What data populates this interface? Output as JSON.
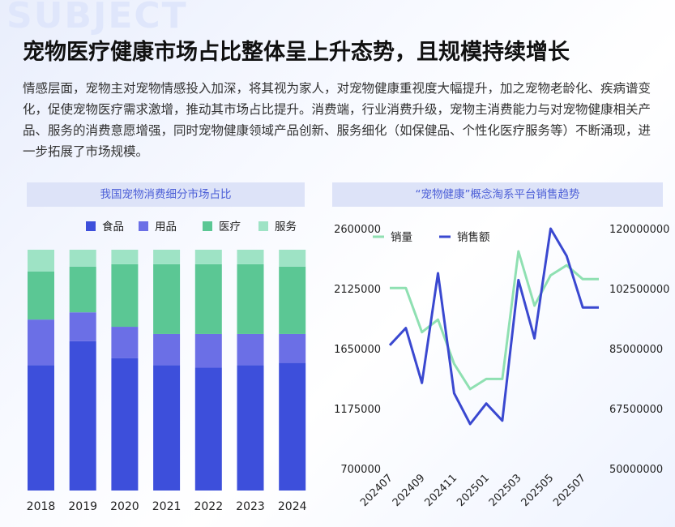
{
  "title": "宠物医疗健康市场占比整体呈上升态势，且规模持续增长",
  "paragraph": "情感层面，宠物主对宠物情感投入加深，将其视为家人，对宠物健康重视度大幅提升，加之宠物老龄化、疾病谱变化，促使宠物医疗需求激增，推动其市场占比提升。消费端，行业消费升级，宠物主消费能力与对宠物健康相关产品、服务的消费意愿增强，同时宠物健康领域产品创新、服务细化（如保健品、个性化医疗服务等）不断涌现，进一步拓展了市场规模。",
  "chart_data": [
    {
      "type": "bar",
      "stacked": true,
      "normalized": true,
      "title": "我国宠物消费细分市场占比",
      "categories": [
        "2018",
        "2019",
        "2020",
        "2021",
        "2022",
        "2023",
        "2024"
      ],
      "series": [
        {
          "name": "食品",
          "color": "#3d4fdb",
          "values": [
            0.52,
            0.62,
            0.55,
            0.52,
            0.51,
            0.52,
            0.53
          ]
        },
        {
          "name": "用品",
          "color": "#6b6fe6",
          "values": [
            0.19,
            0.12,
            0.13,
            0.13,
            0.14,
            0.13,
            0.12
          ]
        },
        {
          "name": "医疗",
          "color": "#5bc794",
          "values": [
            0.2,
            0.19,
            0.26,
            0.29,
            0.29,
            0.29,
            0.28
          ]
        },
        {
          "name": "服务",
          "color": "#9ee3c5",
          "values": [
            0.09,
            0.07,
            0.06,
            0.06,
            0.06,
            0.06,
            0.07
          ]
        }
      ],
      "legend": "top"
    },
    {
      "type": "line",
      "title": "“宠物健康”概念淘系平台销售趋势",
      "x": [
        "202407",
        "202408",
        "202409",
        "202410",
        "202411",
        "202412",
        "202501",
        "202502",
        "202503",
        "202504",
        "202505",
        "202506",
        "202507",
        "202508"
      ],
      "x_tick_labels": [
        "202407",
        "202409",
        "202411",
        "202501",
        "202503",
        "202505",
        "202507"
      ],
      "series": [
        {
          "name": "销量",
          "axis": "left",
          "color": "#8fe0b2",
          "values": [
            2130000,
            2130000,
            1780000,
            1880000,
            1530000,
            1330000,
            1410000,
            1410000,
            2420000,
            1990000,
            2230000,
            2310000,
            2200000,
            2200000
          ]
        },
        {
          "name": "销售额",
          "axis": "right",
          "color": "#3a48d0",
          "values": [
            86000000,
            91000000,
            75000000,
            107000000,
            72000000,
            63000000,
            69000000,
            64000000,
            105000000,
            88000000,
            120000000,
            112000000,
            97000000,
            97000000
          ]
        }
      ],
      "left_axis": {
        "ylim": [
          700000,
          2600000
        ],
        "ticks": [
          "2600000",
          "2125000",
          "1650000",
          "1175000",
          "700000"
        ]
      },
      "right_axis": {
        "ylim": [
          50000000,
          120000000
        ],
        "ticks": [
          "120000000",
          "102500000",
          "85000000",
          "67500000",
          "50000000"
        ]
      },
      "legend": "top-left"
    }
  ]
}
